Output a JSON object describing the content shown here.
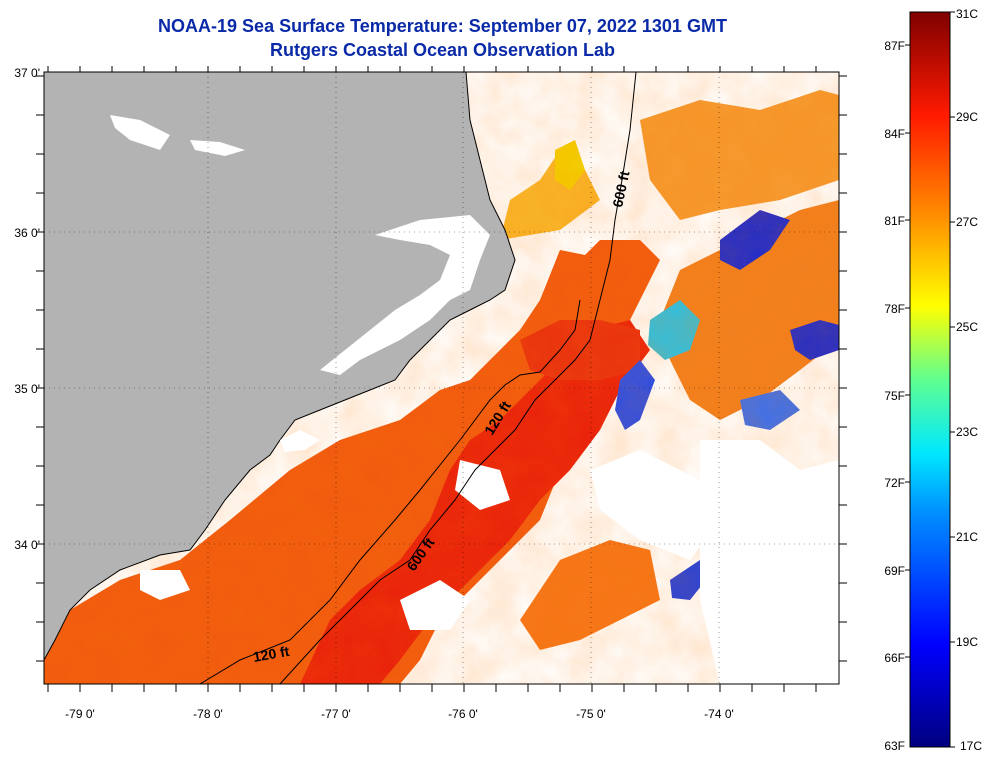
{
  "title": {
    "line1": "NOAA-19 Sea Surface Temperature:  September 07, 2022 1301 GMT",
    "line2": "Rutgers Coastal Ocean Observation Lab"
  },
  "map": {
    "lat_labels": [
      {
        "value": 37,
        "label": "37 0'"
      },
      {
        "value": 36,
        "label": "36 0'"
      },
      {
        "value": 35,
        "label": "35 0'"
      },
      {
        "value": 34,
        "label": "34 0'"
      }
    ],
    "lon_labels": [
      {
        "value": -79,
        "label": "-79 0'"
      },
      {
        "value": -78,
        "label": "-78 0'"
      },
      {
        "value": -77,
        "label": "-77 0'"
      },
      {
        "value": -76,
        "label": "-76 0'"
      },
      {
        "value": -75,
        "label": "-75 0'"
      },
      {
        "value": -74,
        "label": "-74 0'"
      }
    ],
    "contour_labels": [
      {
        "label": "600 ft"
      },
      {
        "label": "120 ft"
      },
      {
        "label": "600 ft"
      },
      {
        "label": "120 ft"
      }
    ],
    "land_color": "#b3b3b3",
    "cloud_color": "#ffffff"
  },
  "colorbar": {
    "celsius_labels": [
      "31C",
      "29C",
      "27C",
      "25C",
      "23C",
      "21C",
      "19C",
      "17C"
    ],
    "fahrenheit_labels": [
      "87F",
      "84F",
      "81F",
      "78F",
      "75F",
      "72F",
      "69F",
      "66F",
      "63F"
    ],
    "range_c": [
      17,
      31
    ],
    "colors": [
      "#00007f",
      "#0000ff",
      "#0080ff",
      "#00ffff",
      "#80ff80",
      "#ffff00",
      "#ff8000",
      "#ff0000",
      "#7f0000"
    ]
  }
}
